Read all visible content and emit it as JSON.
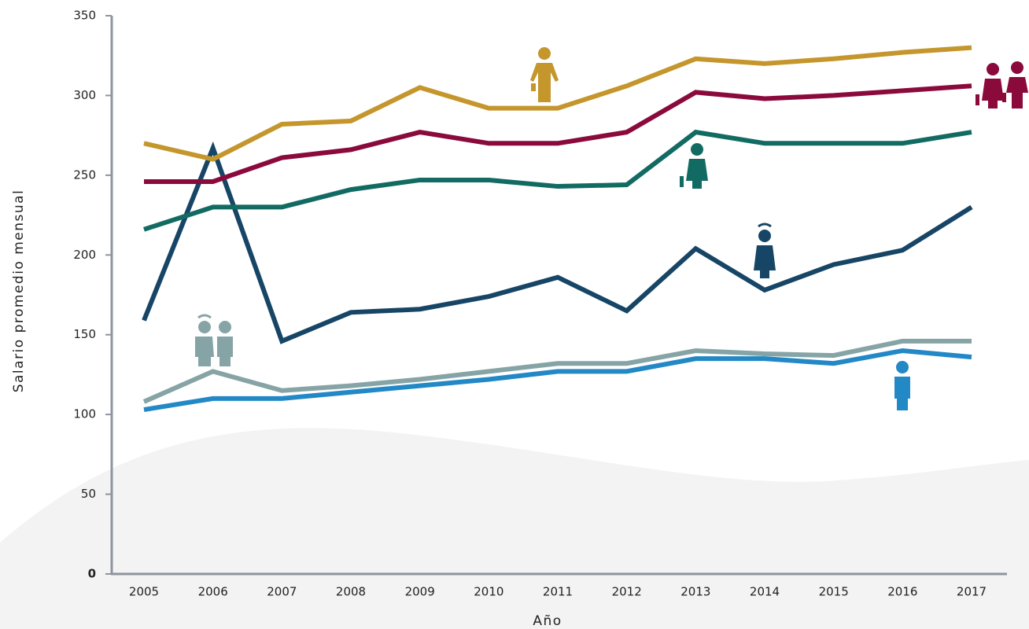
{
  "chart_data": {
    "type": "line",
    "y_label": "Salario promedio mensual",
    "x_label": "Año",
    "categories": [
      "2005",
      "2006",
      "2007",
      "2008",
      "2009",
      "2010",
      "2011",
      "2012",
      "2013",
      "2014",
      "2015",
      "2016",
      "2017"
    ],
    "series": [
      {
        "color": "#c4962c",
        "values": [
          270,
          260,
          282,
          284,
          305,
          292,
          292,
          306,
          323,
          320,
          323,
          327,
          330
        ]
      },
      {
        "color": "#8a0a3c",
        "values": [
          246,
          246,
          261,
          266,
          277,
          270,
          270,
          277,
          302,
          298,
          300,
          303,
          306
        ]
      },
      {
        "color": "#126b63",
        "values": [
          216,
          230,
          230,
          241,
          247,
          247,
          243,
          244,
          277,
          270,
          270,
          270,
          277
        ]
      },
      {
        "color": "#174566",
        "values": [
          159,
          267,
          146,
          164,
          166,
          174,
          186,
          165,
          204,
          178,
          194,
          203,
          230
        ]
      },
      {
        "color": "#86a4a6",
        "values": [
          108,
          127,
          115,
          118,
          122,
          127,
          132,
          132,
          140,
          138,
          137,
          146,
          146
        ]
      },
      {
        "color": "#2288c6",
        "values": [
          103,
          110,
          110,
          114,
          118,
          122,
          127,
          127,
          135,
          135,
          132,
          140,
          136
        ]
      }
    ],
    "ylim": [
      0,
      350
    ],
    "yticks": [
      0,
      50,
      100,
      150,
      200,
      250,
      300,
      350
    ],
    "grid": false
  }
}
